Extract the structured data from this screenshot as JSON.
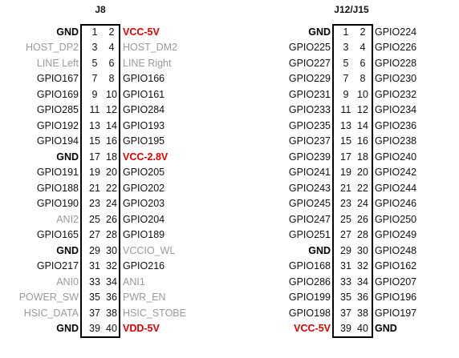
{
  "connectors": [
    {
      "title": "J8",
      "pins": [
        {
          "l": "GND",
          "ls": "bold",
          "n1": "1",
          "n2": "2",
          "r": "VCC-5V",
          "rs": "red"
        },
        {
          "l": "HOST_DP2",
          "ls": "gray",
          "n1": "3",
          "n2": "4",
          "r": "HOST_DM2",
          "rs": "gray"
        },
        {
          "l": "LINE Left",
          "ls": "gray",
          "n1": "5",
          "n2": "6",
          "r": "LINE Right",
          "rs": "gray"
        },
        {
          "l": "GPIO167",
          "ls": "normal",
          "n1": "7",
          "n2": "8",
          "r": "GPIO166",
          "rs": "normal"
        },
        {
          "l": "GPIO169",
          "ls": "normal",
          "n1": "9",
          "n2": "10",
          "r": "GPIO161",
          "rs": "normal"
        },
        {
          "l": "GPIO285",
          "ls": "normal",
          "n1": "11",
          "n2": "12",
          "r": "GPIO284",
          "rs": "normal"
        },
        {
          "l": "GPIO192",
          "ls": "normal",
          "n1": "13",
          "n2": "14",
          "r": "GPIO193",
          "rs": "normal"
        },
        {
          "l": "GPIO194",
          "ls": "normal",
          "n1": "15",
          "n2": "16",
          "r": "GPIO195",
          "rs": "normal"
        },
        {
          "l": "GND",
          "ls": "bold",
          "n1": "17",
          "n2": "18",
          "r": "VCC-2.8V",
          "rs": "red"
        },
        {
          "l": "GPIO191",
          "ls": "normal",
          "n1": "19",
          "n2": "20",
          "r": "GPIO205",
          "rs": "normal"
        },
        {
          "l": "GPIO188",
          "ls": "normal",
          "n1": "21",
          "n2": "22",
          "r": "GPIO202",
          "rs": "normal"
        },
        {
          "l": "GPIO190",
          "ls": "normal",
          "n1": "23",
          "n2": "24",
          "r": "GPIO203",
          "rs": "normal"
        },
        {
          "l": "ANI2",
          "ls": "gray",
          "n1": "25",
          "n2": "26",
          "r": "GPIO204",
          "rs": "normal"
        },
        {
          "l": "GPIO165",
          "ls": "normal",
          "n1": "27",
          "n2": "28",
          "r": "GPIO189",
          "rs": "normal"
        },
        {
          "l": "GND",
          "ls": "bold",
          "n1": "29",
          "n2": "30",
          "r": "VCCIO_WL",
          "rs": "gray"
        },
        {
          "l": "GPIO217",
          "ls": "normal",
          "n1": "31",
          "n2": "32",
          "r": "GPIO216",
          "rs": "normal"
        },
        {
          "l": "ANI0",
          "ls": "gray",
          "n1": "33",
          "n2": "34",
          "r": "ANI1",
          "rs": "gray"
        },
        {
          "l": "POWER_SW",
          "ls": "gray",
          "n1": "35",
          "n2": "36",
          "r": "PWR_EN",
          "rs": "gray"
        },
        {
          "l": "HSIC_DATA",
          "ls": "gray",
          "n1": "37",
          "n2": "38",
          "r": "HSIC_STOBE",
          "rs": "gray"
        },
        {
          "l": "GND",
          "ls": "bold",
          "n1": "39",
          "n2": "40",
          "r": "VDD-5V",
          "rs": "red"
        }
      ]
    },
    {
      "title": "J12/J15",
      "pins": [
        {
          "l": "GND",
          "ls": "bold",
          "n1": "1",
          "n2": "2",
          "r": "GPIO224",
          "rs": "normal"
        },
        {
          "l": "GPIO225",
          "ls": "normal",
          "n1": "3",
          "n2": "4",
          "r": "GPIO226",
          "rs": "normal"
        },
        {
          "l": "GPIO227",
          "ls": "normal",
          "n1": "5",
          "n2": "6",
          "r": "GPIO228",
          "rs": "normal"
        },
        {
          "l": "GPIO229",
          "ls": "normal",
          "n1": "7",
          "n2": "8",
          "r": "GPIO230",
          "rs": "normal"
        },
        {
          "l": "GPIO231",
          "ls": "normal",
          "n1": "9",
          "n2": "10",
          "r": "GPIO232",
          "rs": "normal"
        },
        {
          "l": "GPIO233",
          "ls": "normal",
          "n1": "11",
          "n2": "12",
          "r": "GPIO234",
          "rs": "normal"
        },
        {
          "l": "GPIO235",
          "ls": "normal",
          "n1": "13",
          "n2": "14",
          "r": "GPIO236",
          "rs": "normal"
        },
        {
          "l": "GPIO237",
          "ls": "normal",
          "n1": "15",
          "n2": "16",
          "r": "GPIO238",
          "rs": "normal"
        },
        {
          "l": "GPIO239",
          "ls": "normal",
          "n1": "17",
          "n2": "18",
          "r": "GPIO240",
          "rs": "normal"
        },
        {
          "l": "GPIO241",
          "ls": "normal",
          "n1": "19",
          "n2": "20",
          "r": "GPIO242",
          "rs": "normal"
        },
        {
          "l": "GPIO243",
          "ls": "normal",
          "n1": "21",
          "n2": "22",
          "r": "GPIO244",
          "rs": "normal"
        },
        {
          "l": "GPIO245",
          "ls": "normal",
          "n1": "23",
          "n2": "24",
          "r": "GPIO246",
          "rs": "normal"
        },
        {
          "l": "GPIO247",
          "ls": "normal",
          "n1": "25",
          "n2": "26",
          "r": "GPIO250",
          "rs": "normal"
        },
        {
          "l": "GPIO251",
          "ls": "normal",
          "n1": "27",
          "n2": "28",
          "r": "GPIO249",
          "rs": "normal"
        },
        {
          "l": "GND",
          "ls": "bold",
          "n1": "29",
          "n2": "30",
          "r": "GPIO248",
          "rs": "normal"
        },
        {
          "l": "GPIO168",
          "ls": "normal",
          "n1": "31",
          "n2": "32",
          "r": "GPIO162",
          "rs": "normal"
        },
        {
          "l": "GPIO286",
          "ls": "normal",
          "n1": "33",
          "n2": "34",
          "r": "GPIO207",
          "rs": "normal"
        },
        {
          "l": "GPIO199",
          "ls": "normal",
          "n1": "35",
          "n2": "36",
          "r": "GPIO196",
          "rs": "normal"
        },
        {
          "l": "GPIO198",
          "ls": "normal",
          "n1": "37",
          "n2": "38",
          "r": "GPIO197",
          "rs": "normal"
        },
        {
          "l": "VCC-5V",
          "ls": "red",
          "n1": "39",
          "n2": "40",
          "r": "GND",
          "rs": "bold"
        }
      ]
    }
  ],
  "colors": {
    "power": "#e00000",
    "inactive": "#9a9a9a",
    "text": "#111111"
  }
}
